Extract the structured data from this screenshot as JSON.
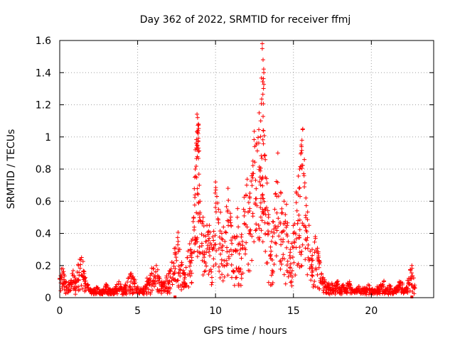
{
  "chart_data": {
    "type": "scatter",
    "title": "Day 362 of 2022, SRMTID for receiver ffmj",
    "xlabel": "GPS time / hours",
    "ylabel": "SRMTID / TECUs",
    "xlim": [
      0,
      24
    ],
    "ylim": [
      0,
      1.6
    ],
    "xticks": [
      "0",
      "5",
      "10",
      "15",
      "20"
    ],
    "yticks": [
      "0",
      "0.2",
      "0.4",
      "0.6",
      "0.8",
      "1",
      "1.2",
      "1.4",
      "1.6"
    ],
    "grid": true,
    "marker": "plus",
    "color": "#ff0000",
    "series": [
      {
        "name": "SRMTID",
        "x": [
          0.0,
          0.2,
          0.4,
          0.6,
          0.8,
          1.0,
          1.2,
          1.4,
          1.6,
          1.8,
          2.0,
          2.2,
          2.4,
          2.6,
          2.8,
          3.0,
          3.2,
          3.4,
          3.6,
          3.8,
          4.0,
          4.2,
          4.4,
          4.6,
          4.8,
          5.0,
          5.2,
          5.4,
          5.6,
          5.8,
          6.0,
          6.2,
          6.4,
          6.6,
          6.8,
          7.0,
          7.2,
          7.4,
          7.6,
          7.8,
          8.0,
          8.2,
          8.4,
          8.6,
          8.7,
          8.8,
          8.85,
          8.9,
          9.0,
          9.2,
          9.4,
          9.6,
          9.8,
          10.0,
          10.2,
          10.4,
          10.6,
          10.8,
          11.0,
          11.2,
          11.4,
          11.6,
          11.8,
          12.0,
          12.2,
          12.4,
          12.6,
          12.8,
          12.9,
          13.0,
          13.05,
          13.1,
          13.2,
          13.4,
          13.6,
          13.8,
          14.0,
          14.2,
          14.4,
          14.6,
          14.8,
          15.0,
          15.2,
          15.4,
          15.5,
          15.6,
          15.8,
          16.0,
          16.2,
          16.4,
          16.6,
          16.8,
          17.0,
          17.2,
          17.4,
          17.6,
          17.8,
          18.0,
          18.2,
          18.4,
          18.6,
          18.8,
          19.0,
          19.2,
          19.4,
          19.6,
          19.8,
          20.0,
          20.2,
          20.4,
          20.6,
          20.8,
          21.0,
          21.2,
          21.4,
          21.6,
          21.8,
          22.0,
          22.2,
          22.4,
          22.6,
          22.8,
          7.4,
          22.6
        ],
        "y": [
          0.12,
          0.18,
          0.1,
          0.08,
          0.15,
          0.1,
          0.2,
          0.25,
          0.12,
          0.08,
          0.05,
          0.04,
          0.06,
          0.03,
          0.05,
          0.08,
          0.04,
          0.03,
          0.06,
          0.1,
          0.05,
          0.08,
          0.12,
          0.15,
          0.1,
          0.06,
          0.04,
          0.05,
          0.1,
          0.12,
          0.18,
          0.2,
          0.12,
          0.08,
          0.1,
          0.15,
          0.22,
          0.28,
          0.35,
          0.2,
          0.15,
          0.25,
          0.3,
          0.5,
          0.8,
          0.95,
          1.12,
          1.08,
          0.6,
          0.5,
          0.35,
          0.45,
          0.3,
          0.72,
          0.55,
          0.4,
          0.35,
          0.68,
          0.45,
          0.38,
          0.5,
          0.3,
          0.55,
          0.7,
          0.62,
          0.85,
          0.95,
          1.15,
          1.1,
          1.55,
          1.48,
          1.4,
          0.75,
          0.5,
          0.35,
          0.55,
          0.9,
          0.65,
          0.6,
          0.45,
          0.3,
          0.4,
          0.65,
          0.8,
          0.95,
          1.05,
          0.62,
          0.45,
          0.3,
          0.38,
          0.25,
          0.15,
          0.1,
          0.07,
          0.08,
          0.06,
          0.1,
          0.05,
          0.08,
          0.06,
          0.1,
          0.05,
          0.04,
          0.07,
          0.05,
          0.06,
          0.08,
          0.05,
          0.04,
          0.06,
          0.08,
          0.1,
          0.05,
          0.07,
          0.04,
          0.06,
          0.1,
          0.08,
          0.05,
          0.12,
          0.2,
          0.06,
          0.0,
          0.0
        ]
      }
    ]
  }
}
